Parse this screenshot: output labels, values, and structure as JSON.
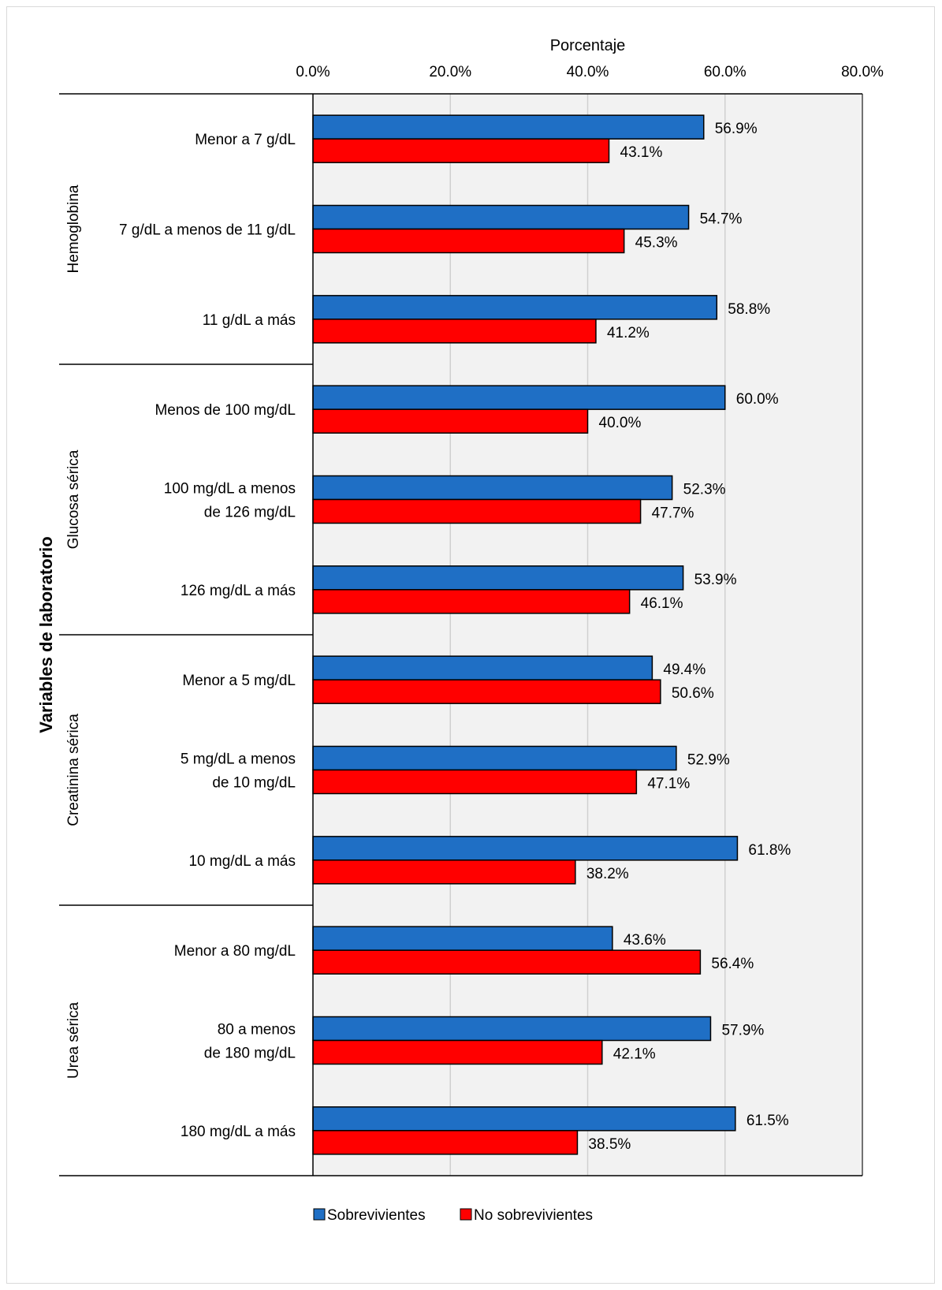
{
  "chart_data": {
    "type": "bar",
    "orientation": "horizontal",
    "xlabel": "Porcentaje",
    "ylabel": "Variables de laboratorio",
    "xlim": [
      0,
      80
    ],
    "x_ticks": [
      "0.0%",
      "20.0%",
      "40.0%",
      "60.0%",
      "80.0%"
    ],
    "x_axis_position": "top",
    "grid": true,
    "legend_position": "bottom",
    "colors": {
      "Sobrevivientes": "#1f6fc5",
      "No sobrevivientes": "#ff0000",
      "plot_bg": "#f2f2f2"
    },
    "series_names": [
      "Sobrevivientes",
      "No sobrevivientes"
    ],
    "groups": [
      {
        "name": "Hemoglobina",
        "categories": [
          {
            "label": [
              "Menor a 7 g/dL"
            ],
            "values": [
              56.9,
              43.1
            ],
            "labels": [
              "56.9%",
              "43.1%"
            ]
          },
          {
            "label": [
              "7 g/dL a menos de 11 g/dL"
            ],
            "values": [
              54.7,
              45.3
            ],
            "labels": [
              "54.7%",
              "45.3%"
            ]
          },
          {
            "label": [
              "11 g/dL a más"
            ],
            "values": [
              58.8,
              41.2
            ],
            "labels": [
              "58.8%",
              "41.2%"
            ]
          }
        ]
      },
      {
        "name": "Glucosa sérica",
        "categories": [
          {
            "label": [
              "Menos de 100 mg/dL"
            ],
            "values": [
              60.0,
              40.0
            ],
            "labels": [
              "60.0%",
              "40.0%"
            ]
          },
          {
            "label": [
              "100 mg/dL a menos",
              "de 126 mg/dL"
            ],
            "values": [
              52.3,
              47.7
            ],
            "labels": [
              "52.3%",
              "47.7%"
            ]
          },
          {
            "label": [
              "126 mg/dL a más"
            ],
            "values": [
              53.9,
              46.1
            ],
            "labels": [
              "53.9%",
              "46.1%"
            ]
          }
        ]
      },
      {
        "name": "Creatinina sérica",
        "categories": [
          {
            "label": [
              "Menor a 5 mg/dL"
            ],
            "values": [
              49.4,
              50.6
            ],
            "labels": [
              "49.4%",
              "50.6%"
            ]
          },
          {
            "label": [
              "5 mg/dL a menos",
              "de 10 mg/dL"
            ],
            "values": [
              52.9,
              47.1
            ],
            "labels": [
              "52.9%",
              "47.1%"
            ]
          },
          {
            "label": [
              "10 mg/dL a más"
            ],
            "values": [
              61.8,
              38.2
            ],
            "labels": [
              "61.8%",
              "38.2%"
            ]
          }
        ]
      },
      {
        "name": "Urea sérica",
        "categories": [
          {
            "label": [
              "Menor a 80 mg/dL"
            ],
            "values": [
              43.6,
              56.4
            ],
            "labels": [
              "43.6%",
              "56.4%"
            ]
          },
          {
            "label": [
              "80 a menos",
              "de 180 mg/dL"
            ],
            "values": [
              57.9,
              42.1
            ],
            "labels": [
              "57.9%",
              "42.1%"
            ]
          },
          {
            "label": [
              "180 mg/dL a más"
            ],
            "values": [
              61.5,
              38.5
            ],
            "labels": [
              "61.5%",
              "38.5%"
            ]
          }
        ]
      }
    ]
  }
}
